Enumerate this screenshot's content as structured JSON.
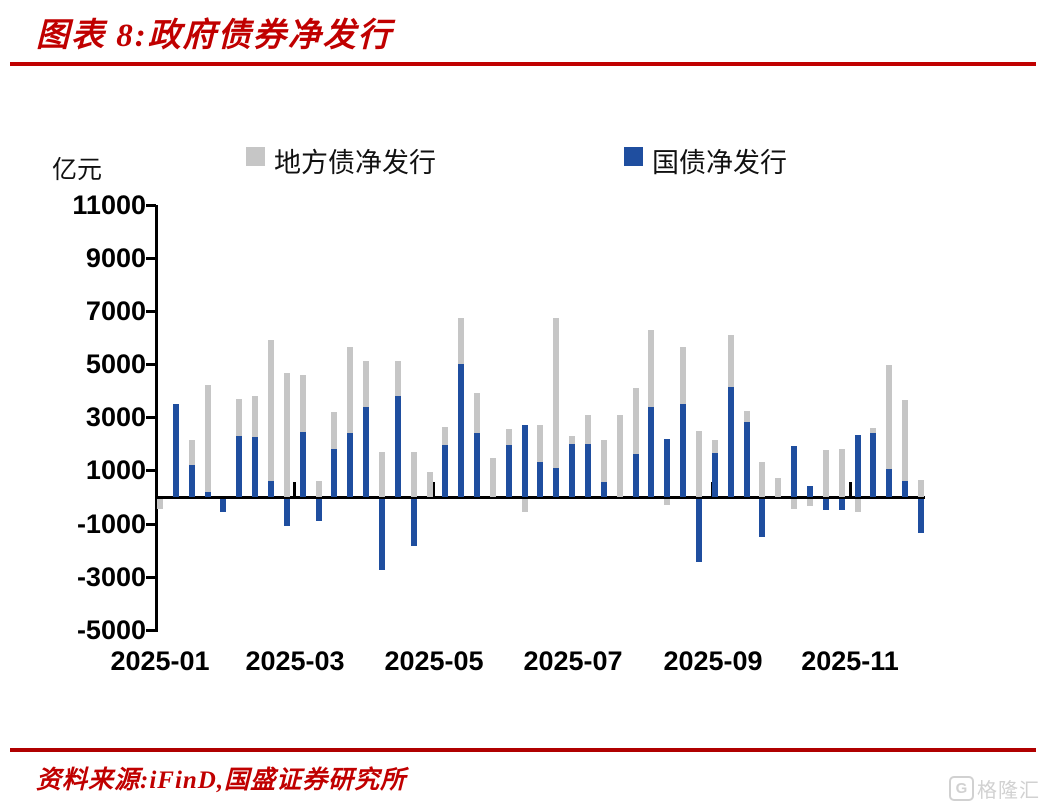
{
  "header": {
    "title": "图表 8:政府债券净发行"
  },
  "chart": {
    "unit_label": "亿元",
    "legend": [
      {
        "label": "地方债净发行",
        "color": "#c6c6c6"
      },
      {
        "label": "国债净发行",
        "color": "#1f4e9f"
      }
    ]
  },
  "chart_data": {
    "type": "bar",
    "title": "政府债券净发行",
    "ylabel": "亿元",
    "ylim": [
      -5000,
      11000
    ],
    "y_ticks": [
      11000,
      9000,
      7000,
      5000,
      3000,
      1000,
      -1000,
      -3000,
      -5000
    ],
    "x_tick_labels": [
      "2025-01",
      "2025-03",
      "2025-05",
      "2025-07",
      "2025-09",
      "2025-11"
    ],
    "x_frequency": "weekly",
    "bar_style": "overlay",
    "legend_position": "top",
    "grid": false,
    "series": [
      {
        "name": "地方债净发行",
        "color": "#c6c6c6",
        "values": [
          -400,
          0,
          2150,
          4200,
          0,
          3700,
          3800,
          5900,
          4650,
          4600,
          600,
          3200,
          5650,
          5100,
          1700,
          5100,
          1700,
          950,
          2650,
          6750,
          3900,
          1450,
          2550,
          -500,
          2700,
          6750,
          2300,
          3100,
          2150,
          3100,
          4100,
          6300,
          -250,
          5650,
          2500,
          2150,
          6100,
          3250,
          1300,
          700,
          -400,
          -300,
          1750,
          1800,
          -500,
          2600,
          4950,
          3650,
          650
        ]
      },
      {
        "name": "国债净发行",
        "color": "#1f4e9f",
        "values": [
          0,
          3500,
          1200,
          200,
          -500,
          2300,
          2250,
          600,
          -1050,
          2450,
          -850,
          1800,
          2400,
          3400,
          -2700,
          3800,
          -1800,
          0,
          1950,
          5000,
          2400,
          0,
          1950,
          2700,
          1330,
          1080,
          2000,
          2000,
          550,
          0,
          1600,
          3400,
          2200,
          3500,
          -2400,
          1650,
          4150,
          2830,
          -1450,
          0,
          1900,
          400,
          -450,
          -450,
          2330,
          2420,
          1050,
          600,
          -1300
        ]
      }
    ]
  },
  "footer": {
    "source": "资料来源:iFinD,国盛证券研究所",
    "watermark": {
      "icon_letter": "G",
      "text": "格隆汇"
    }
  }
}
